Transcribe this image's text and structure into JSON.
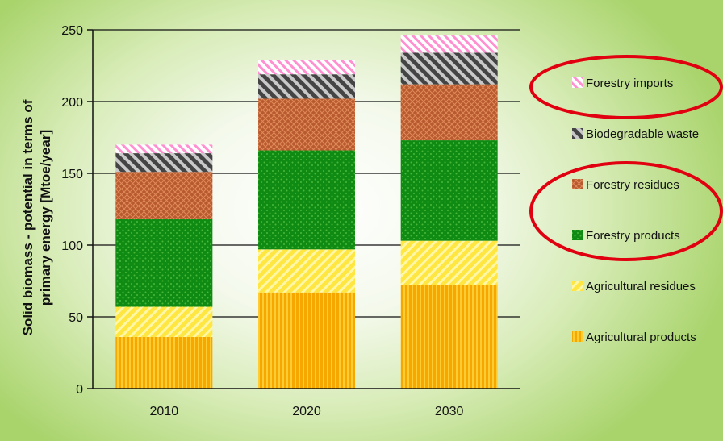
{
  "chart_data": {
    "type": "bar",
    "stacked": true,
    "title": "",
    "ylabel_lines": [
      "Solid biomass - potential in terms of",
      "primary energy [Mtoe/year]"
    ],
    "xlabel": "",
    "ylim": [
      0,
      250
    ],
    "yticks": [
      0,
      50,
      100,
      150,
      200,
      250
    ],
    "categories": [
      "2010",
      "2020",
      "2030"
    ],
    "series": [
      {
        "name": "Agricultural products",
        "values": [
          36,
          67,
          72
        ],
        "color": "#f7a800",
        "pattern": "vlines"
      },
      {
        "name": "Agricultural residues",
        "values": [
          21,
          30,
          31
        ],
        "color": "#ffe640",
        "pattern": "diag"
      },
      {
        "name": "Forestry products",
        "values": [
          61,
          69,
          70
        ],
        "color": "#0f8a12",
        "pattern": "dots"
      },
      {
        "name": "Forestry residues",
        "values": [
          33,
          36,
          39
        ],
        "color": "#b85a30",
        "pattern": "cross"
      },
      {
        "name": "Biodegradable waste",
        "values": [
          13,
          17,
          22
        ],
        "color": "#555555",
        "pattern": "diag-dark"
      },
      {
        "name": "Forestry imports",
        "values": [
          6,
          10,
          12
        ],
        "color": "#ff8fd0",
        "pattern": "diag-pink"
      }
    ],
    "legend_order": [
      "Forestry imports",
      "Biodegradable waste",
      "Forestry residues",
      "Forestry products",
      "Agricultural residues",
      "Agricultural products"
    ],
    "legend_position": "right",
    "grid": true,
    "highlight_circles": "Forestry imports; Forestry residues and Forestry products"
  }
}
